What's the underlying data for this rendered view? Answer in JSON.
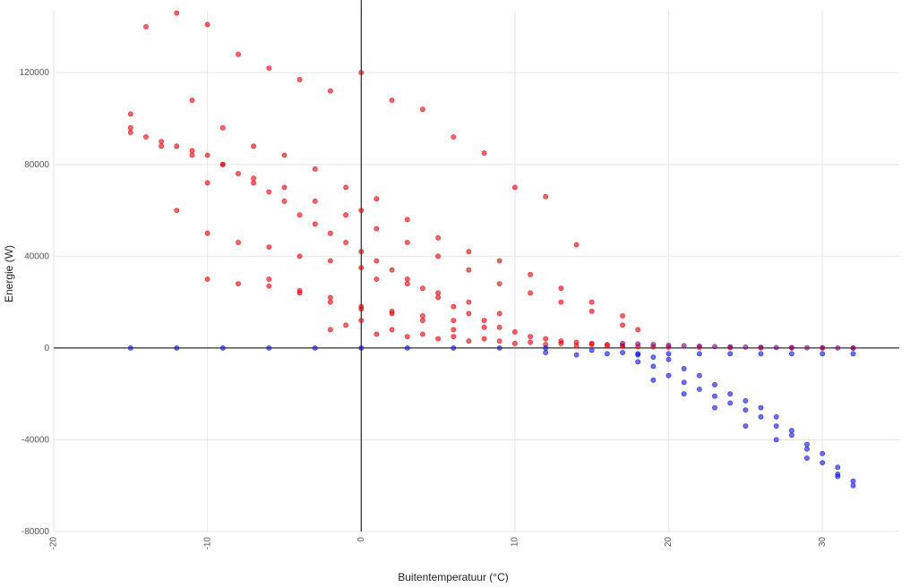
{
  "chart_data": {
    "type": "scatter",
    "xlabel": "Buitentemperatuur (°C)",
    "ylabel": "Energie (W)",
    "xlim": [
      -20,
      35
    ],
    "ylim": [
      -80000,
      147000
    ],
    "x_ticks": [
      -20,
      -10,
      0,
      10,
      20,
      30
    ],
    "x_tick_labels": [
      "-20",
      "-10",
      "0",
      "10",
      "20",
      "30"
    ],
    "y_ticks": [
      -80000,
      -40000,
      0,
      40000,
      80000,
      120000
    ],
    "y_tick_labels": [
      "-80000",
      "-40000",
      "0",
      "40000",
      "80000",
      "120000"
    ],
    "grid": true,
    "zero_lines": true,
    "legend": "none",
    "colors": {
      "heating": "#e8000b",
      "cooling": "#1010e0",
      "transition": "#7a0a7a"
    },
    "series": [
      {
        "color": "#e8000b",
        "x": [
          -15,
          -15,
          -14,
          -13,
          -12,
          -11,
          -10,
          -10,
          -9,
          -8,
          -7,
          -6,
          -5,
          -4,
          -3,
          -2,
          -1,
          0,
          0,
          1,
          2,
          3,
          4,
          5,
          6,
          7,
          8,
          9,
          10,
          11,
          12,
          13,
          14,
          15,
          16,
          17,
          -14,
          -12,
          -10,
          -8,
          -6,
          -4,
          -2,
          0,
          2,
          4,
          6,
          8,
          10,
          12,
          14,
          -11,
          -9,
          -7,
          -5,
          -3,
          -1,
          1,
          3,
          5,
          7,
          9,
          11,
          13,
          15,
          17,
          -6,
          -4,
          -2,
          0,
          2,
          4,
          6,
          8,
          -10,
          -8,
          -6,
          -4,
          -2,
          0,
          2,
          4,
          6,
          -12,
          -10,
          -8,
          -6,
          -4,
          -2,
          0,
          1,
          3,
          5,
          7,
          9,
          -15,
          -13,
          -11,
          -9,
          -7,
          -5,
          -3,
          -1,
          1,
          3,
          5,
          7,
          9,
          11,
          13,
          15,
          17,
          18,
          -2,
          -1,
          0,
          1,
          2,
          3,
          4,
          5,
          6,
          7,
          8,
          9,
          10,
          11,
          12,
          13,
          14,
          15,
          16,
          17,
          18,
          19,
          20,
          22,
          24,
          26,
          28,
          30,
          32
        ],
        "y": [
          102000,
          96000,
          92000,
          90000,
          88000,
          86000,
          84000,
          72000,
          80000,
          76000,
          72000,
          68000,
          64000,
          58000,
          54000,
          50000,
          46000,
          42000,
          60000,
          38000,
          34000,
          30000,
          26000,
          22000,
          18000,
          15000,
          12000,
          9000,
          7000,
          5000,
          4000,
          3000,
          2500,
          2000,
          1500,
          1000,
          140000,
          146000,
          141000,
          128000,
          122000,
          117000,
          112000,
          120000,
          108000,
          104000,
          92000,
          85000,
          70000,
          66000,
          45000,
          108000,
          96000,
          88000,
          84000,
          78000,
          70000,
          65000,
          56000,
          48000,
          42000,
          38000,
          32000,
          26000,
          20000,
          14000,
          30000,
          25000,
          22000,
          18000,
          16000,
          14000,
          12000,
          9000,
          30000,
          28000,
          27000,
          24000,
          20000,
          17000,
          15000,
          12000,
          8000,
          60000,
          50000,
          46000,
          44000,
          40000,
          38000,
          35000,
          30000,
          28000,
          24000,
          20000,
          15000,
          94000,
          88000,
          84000,
          80000,
          74000,
          70000,
          64000,
          58000,
          52000,
          46000,
          40000,
          34000,
          28000,
          24000,
          20000,
          16000,
          10000,
          8000,
          8000,
          10000,
          12000,
          6000,
          8000,
          5000,
          6000,
          4000,
          5000,
          3000,
          4000,
          3000,
          2000,
          2500,
          1500,
          2000,
          1000,
          1500,
          1000,
          800,
          600,
          500,
          400,
          300,
          200,
          100,
          50,
          0,
          0
        ]
      },
      {
        "color": "#1010e0",
        "x": [
          -15,
          -12,
          -9,
          -6,
          -3,
          0,
          3,
          6,
          9,
          12,
          15,
          17,
          18,
          19,
          20,
          21,
          22,
          23,
          24,
          25,
          26,
          27,
          28,
          29,
          30,
          31,
          32,
          18,
          19,
          20,
          21,
          22,
          23,
          24,
          25,
          26,
          27,
          28,
          29,
          30,
          31,
          32,
          12,
          14,
          16,
          18,
          20,
          22,
          24,
          26,
          28,
          30,
          32,
          19,
          21,
          23,
          25,
          27,
          29,
          31
        ],
        "y": [
          0,
          0,
          0,
          0,
          0,
          0,
          0,
          0,
          0,
          0,
          -1000,
          -2000,
          -6000,
          -8000,
          -12000,
          -15000,
          -18000,
          -21000,
          -24000,
          -27000,
          -30000,
          -34000,
          -38000,
          -42000,
          -46000,
          -52000,
          -58000,
          -3000,
          -4000,
          -5000,
          -9000,
          -12000,
          -16000,
          -20000,
          -23000,
          -26000,
          -30000,
          -36000,
          -44000,
          -50000,
          -56000,
          -60000,
          -2000,
          -3000,
          -2500,
          -2500,
          -2500,
          -2500,
          -2500,
          -2500,
          -2500,
          -2500,
          -2500,
          -14000,
          -20000,
          -26000,
          -34000,
          -40000,
          -48000,
          -55000
        ]
      },
      {
        "color": "#7a0a7a",
        "x": [
          17,
          18,
          19,
          20,
          21,
          22,
          23,
          24,
          25,
          26,
          27,
          28,
          29,
          30,
          31,
          32
        ],
        "y": [
          2000,
          1800,
          1500,
          1200,
          1000,
          800,
          600,
          500,
          400,
          300,
          200,
          200,
          100,
          100,
          0,
          0
        ]
      }
    ]
  }
}
